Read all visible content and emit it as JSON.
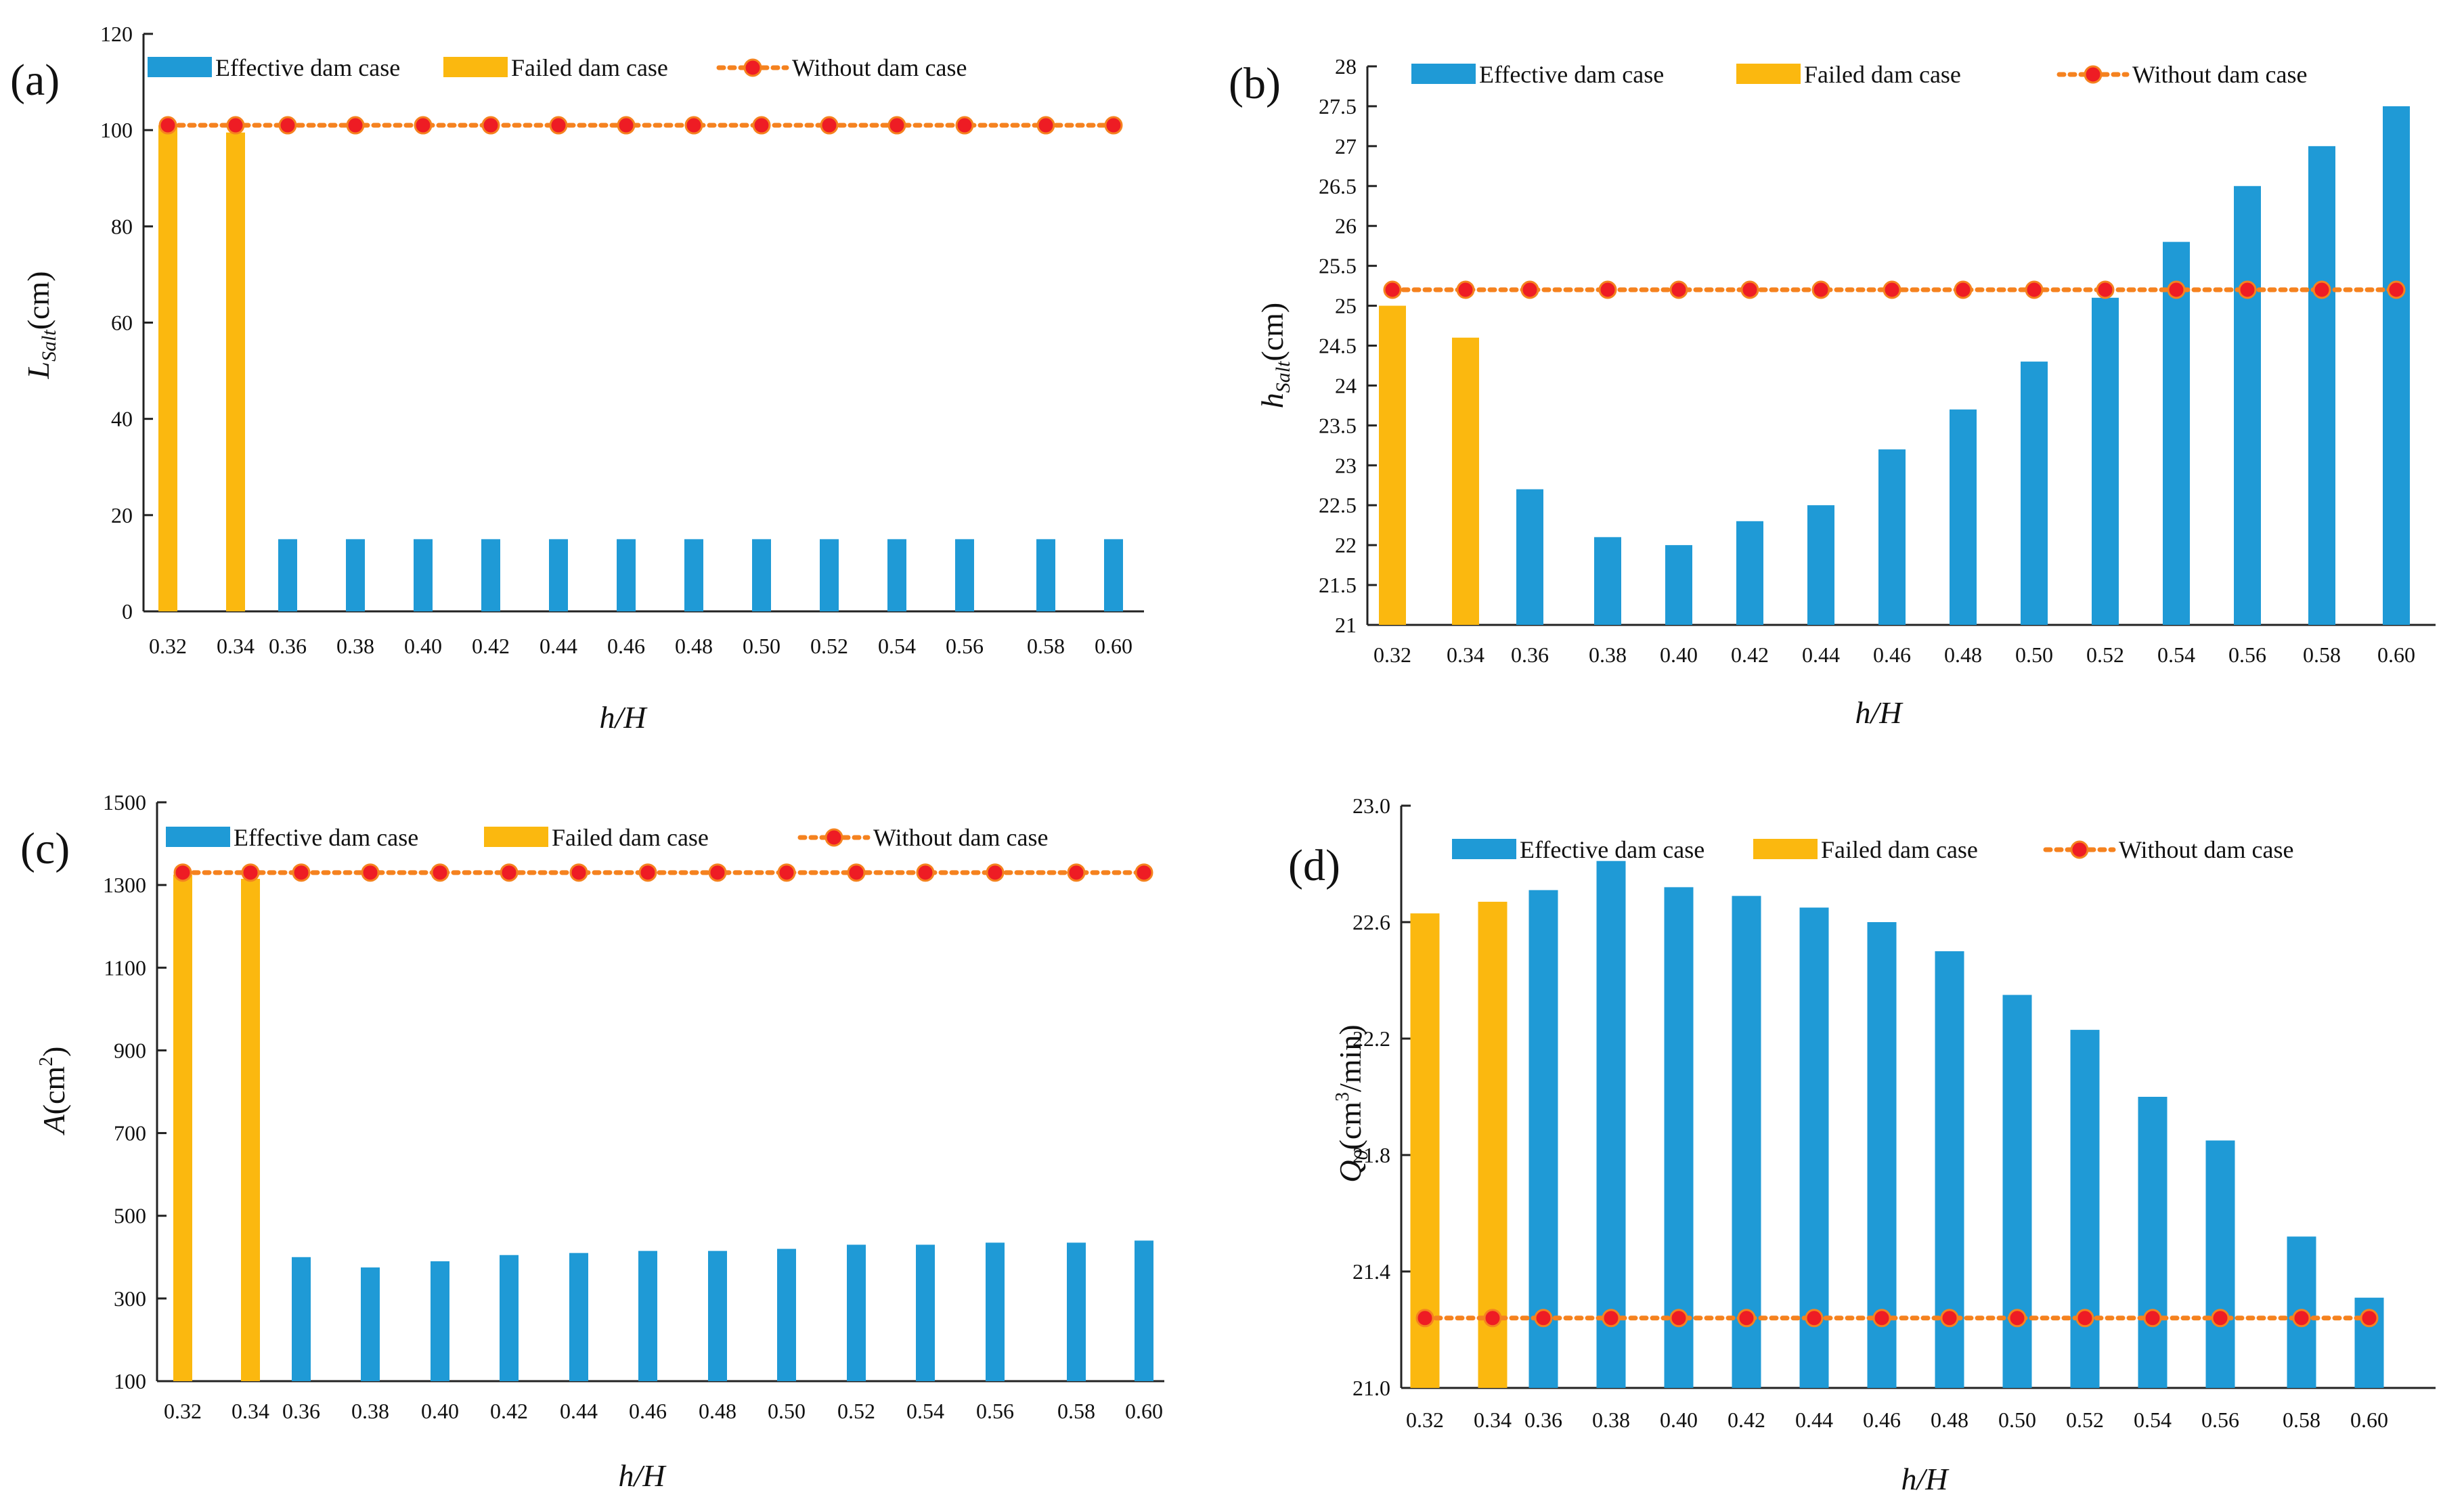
{
  "figure": {
    "colors": {
      "effective": "#1f9ad6",
      "failed": "#fbb80f",
      "without": "#f5821f",
      "dot": "#ee1c24",
      "axis": "#222222"
    }
  },
  "legend": {
    "effective": "Effective dam case",
    "failed": "Failed dam case",
    "without": "Without dam case"
  },
  "chart_data": [
    {
      "type": "bar",
      "panel": "(a)",
      "categories": [
        "0.32",
        "0.34",
        "0.36",
        "0.38",
        "0.40",
        "0.42",
        "0.44",
        "0.46",
        "0.48",
        "0.50",
        "0.52",
        "0.54",
        "0.56",
        "0.58",
        "0.60"
      ],
      "series": [
        {
          "name": "Failed dam case",
          "kind": "failed",
          "values": [
            101,
            99.5,
            null,
            null,
            null,
            null,
            null,
            null,
            null,
            null,
            null,
            null,
            null,
            null,
            null
          ]
        },
        {
          "name": "Effective dam case",
          "kind": "effective",
          "values": [
            null,
            null,
            15,
            15,
            15,
            15,
            15,
            15,
            15,
            15,
            15,
            15,
            15,
            15,
            15
          ]
        },
        {
          "name": "Without dam case",
          "kind": "without",
          "values": [
            101,
            101,
            101,
            101,
            101,
            101,
            101,
            101,
            101,
            101,
            101,
            101,
            101,
            101,
            101
          ]
        }
      ],
      "xlabel_main": "h",
      "xlabel_sep": "/",
      "xlabel_end": "H",
      "ylabel_main": "L",
      "ylabel_sub": "Salt",
      "ylabel_unit": "(cm)",
      "ylim": [
        0,
        120
      ],
      "yticks": [
        "0",
        "20",
        "40",
        "60",
        "80",
        "100",
        "120"
      ]
    },
    {
      "type": "bar",
      "panel": "(b)",
      "categories": [
        "0.32",
        "0.34",
        "0.36",
        "0.38",
        "0.40",
        "0.42",
        "0.44",
        "0.46",
        "0.48",
        "0.50",
        "0.52",
        "0.54",
        "0.56",
        "0.58",
        "0.60"
      ],
      "series": [
        {
          "name": "Failed dam case",
          "kind": "failed",
          "values": [
            25.0,
            24.6,
            null,
            null,
            null,
            null,
            null,
            null,
            null,
            null,
            null,
            null,
            null,
            null,
            null
          ]
        },
        {
          "name": "Effective dam case",
          "kind": "effective",
          "values": [
            null,
            null,
            22.7,
            22.1,
            22.0,
            22.3,
            22.5,
            23.2,
            23.7,
            24.3,
            25.1,
            25.8,
            26.5,
            27.0,
            27.5
          ]
        },
        {
          "name": "Without dam case",
          "kind": "without",
          "values": [
            25.2,
            25.2,
            25.2,
            25.2,
            25.2,
            25.2,
            25.2,
            25.2,
            25.2,
            25.2,
            25.2,
            25.2,
            25.2,
            25.2,
            25.2
          ]
        }
      ],
      "xlabel_main": "h",
      "xlabel_sep": "/",
      "xlabel_end": "H",
      "ylabel_main": "h",
      "ylabel_sub": "Salt",
      "ylabel_unit": "(cm)",
      "ylim": [
        21,
        28
      ],
      "yticks": [
        "21",
        "21.5",
        "22",
        "22.5",
        "23",
        "23.5",
        "24",
        "24.5",
        "25",
        "25.5",
        "26",
        "26.5",
        "27",
        "27.5",
        "28"
      ]
    },
    {
      "type": "bar",
      "panel": "(c)",
      "categories": [
        "0.32",
        "0.34",
        "0.36",
        "0.38",
        "0.40",
        "0.42",
        "0.44",
        "0.46",
        "0.48",
        "0.50",
        "0.52",
        "0.54",
        "0.56",
        "0.58",
        "0.60"
      ],
      "series": [
        {
          "name": "Failed dam case",
          "kind": "failed",
          "values": [
            1325,
            1315,
            null,
            null,
            null,
            null,
            null,
            null,
            null,
            null,
            null,
            null,
            null,
            null,
            null
          ]
        },
        {
          "name": "Effective dam case",
          "kind": "effective",
          "values": [
            null,
            null,
            400,
            375,
            390,
            405,
            410,
            415,
            415,
            420,
            430,
            430,
            435,
            435,
            440
          ]
        },
        {
          "name": "Without dam case",
          "kind": "without",
          "values": [
            1330,
            1330,
            1330,
            1330,
            1330,
            1330,
            1330,
            1330,
            1330,
            1330,
            1330,
            1330,
            1330,
            1330,
            1330
          ]
        }
      ],
      "xlabel_main": "h",
      "xlabel_sep": "/",
      "xlabel_end": "H",
      "ylabel_main": "A",
      "ylabel_unit": "(cm",
      "ylabel_sup": "2",
      "ylabel_close": ")",
      "ylim": [
        100,
        1500
      ],
      "yticks": [
        "100",
        "300",
        "500",
        "700",
        "900",
        "1100",
        "1300",
        "1500"
      ]
    },
    {
      "type": "bar",
      "panel": "(d)",
      "categories": [
        "0.32",
        "0.34",
        "0.36",
        "0.38",
        "0.40",
        "0.42",
        "0.44",
        "0.46",
        "0.48",
        "0.50",
        "0.52",
        "0.54",
        "0.56",
        "0.58",
        "0.60"
      ],
      "series": [
        {
          "name": "Failed dam case",
          "kind": "failed",
          "values": [
            22.63,
            22.67,
            null,
            null,
            null,
            null,
            null,
            null,
            null,
            null,
            null,
            null,
            null,
            null,
            null
          ]
        },
        {
          "name": "Effective dam case",
          "kind": "effective",
          "values": [
            null,
            null,
            22.71,
            22.81,
            22.72,
            22.69,
            22.65,
            22.6,
            22.5,
            22.35,
            22.23,
            22.0,
            21.85,
            21.52,
            21.31
          ]
        },
        {
          "name": "Without dam case",
          "kind": "without",
          "values": [
            21.24,
            21.24,
            21.24,
            21.24,
            21.24,
            21.24,
            21.24,
            21.24,
            21.24,
            21.24,
            21.24,
            21.24,
            21.24,
            21.24,
            21.24
          ]
        }
      ],
      "xlabel_main": "h",
      "xlabel_sep": "/",
      "xlabel_end": "H",
      "ylabel_main": "Q",
      "ylabel_sub": "0",
      "ylabel_unit": "(cm",
      "ylabel_sup": "3",
      "ylabel_close": "/min)",
      "ylim": [
        21.0,
        23.0
      ],
      "yticks": [
        "21.0",
        "21.4",
        "21.8",
        "22.2",
        "22.6",
        "23.0"
      ]
    }
  ]
}
